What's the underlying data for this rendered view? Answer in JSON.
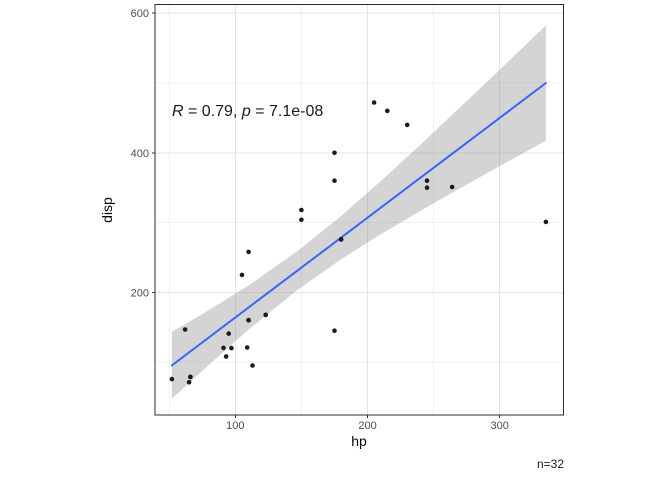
{
  "labels": {
    "x_axis_title": "hp",
    "y_axis_title": "disp",
    "caption": "n=32"
  },
  "annotation": {
    "r_symbol": "R",
    "r_value": " = 0.79, ",
    "p_symbol": "p",
    "p_value": " = 7.1e-08",
    "full_text": "R = 0.79, p = 7.1e-08"
  },
  "colors": {
    "smooth_line": "#3366FF",
    "confidence_band": "#999999",
    "confidence_band_alpha": 0.42,
    "point": "#1b1b1b",
    "grid_major": "#e3e3e3",
    "grid_minor": "#f0f0f0",
    "panel_border": "#2b2b2b",
    "tick_mark": "#333333",
    "tick_label": "#4d4d4d",
    "background": "#ffffff"
  },
  "chart_data": {
    "type": "scatter",
    "title": "",
    "xlabel": "hp",
    "ylabel": "disp",
    "n": 32,
    "xlim": [
      39.2,
      348.3
    ],
    "ylim": [
      24.2,
      612.5
    ],
    "x_ticks_major": [
      100,
      200,
      300
    ],
    "x_ticks_minor": [
      50,
      150,
      250
    ],
    "y_ticks_major": [
      200,
      400,
      600
    ],
    "y_ticks_minor": [
      100,
      300,
      500
    ],
    "grid": true,
    "legend": "none",
    "points": [
      [
        110,
        160
      ],
      [
        110,
        160
      ],
      [
        93,
        108
      ],
      [
        110,
        258
      ],
      [
        175,
        360
      ],
      [
        105,
        225
      ],
      [
        245,
        360
      ],
      [
        62,
        146.7
      ],
      [
        95,
        140.8
      ],
      [
        123,
        167.6
      ],
      [
        123,
        167.6
      ],
      [
        180,
        275.8
      ],
      [
        180,
        275.8
      ],
      [
        180,
        275.8
      ],
      [
        205,
        472
      ],
      [
        215,
        460
      ],
      [
        230,
        440
      ],
      [
        66,
        78.7
      ],
      [
        52,
        75.7
      ],
      [
        65,
        71.1
      ],
      [
        97,
        120.1
      ],
      [
        150,
        318
      ],
      [
        150,
        304
      ],
      [
        245,
        350
      ],
      [
        175,
        400
      ],
      [
        66,
        79
      ],
      [
        91,
        120.3
      ],
      [
        113,
        95.1
      ],
      [
        264,
        351
      ],
      [
        175,
        145
      ],
      [
        335,
        301
      ],
      [
        109,
        121
      ]
    ],
    "regression_line": {
      "x": [
        52,
        335
      ],
      "y": [
        95.3,
        500.0
      ]
    },
    "confidence_band": {
      "x": [
        52,
        80,
        110,
        146.7,
        180,
        210,
        240,
        270,
        300,
        335
      ],
      "lower": [
        47.4,
        96.3,
        146.6,
        202.9,
        247.3,
        283.1,
        316.7,
        349.1,
        380.9,
        417.5
      ],
      "upper": [
        143.3,
        174.5,
        210.0,
        258.6,
        309.4,
        359.4,
        411.6,
        465.0,
        519.0,
        582.5
      ]
    }
  }
}
